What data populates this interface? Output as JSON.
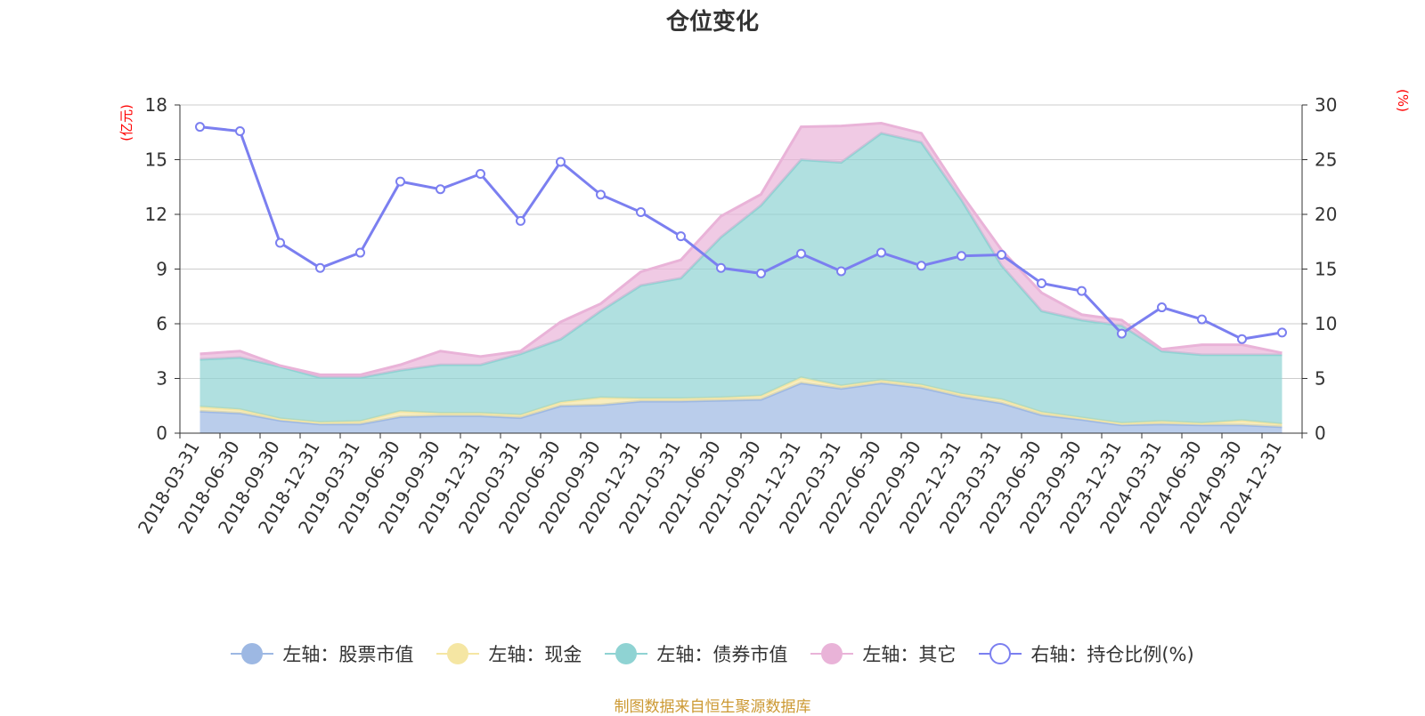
{
  "chart_data": {
    "type": "area",
    "title": "仓位变化",
    "left_axis_unit": "(亿元)",
    "right_axis_unit": "(%)",
    "left_ylim": [
      0,
      18
    ],
    "left_ticks": [
      "0",
      "3",
      "6",
      "9",
      "12",
      "15",
      "18"
    ],
    "right_ylim": [
      0,
      30
    ],
    "right_ticks": [
      "0",
      "5",
      "10",
      "15",
      "20",
      "25",
      "30"
    ],
    "categories": [
      "2018-03-31",
      "2018-06-30",
      "2018-09-30",
      "2018-12-31",
      "2019-03-31",
      "2019-06-30",
      "2019-09-30",
      "2019-12-31",
      "2020-03-31",
      "2020-06-30",
      "2020-09-30",
      "2020-12-31",
      "2021-03-31",
      "2021-06-30",
      "2021-09-30",
      "2021-12-31",
      "2022-03-31",
      "2022-06-30",
      "2022-09-30",
      "2022-12-31",
      "2023-03-31",
      "2023-06-30",
      "2023-09-30",
      "2023-12-31",
      "2024-03-31",
      "2024-06-30",
      "2024-09-30",
      "2024-12-31"
    ],
    "series": [
      {
        "name": "左轴：股票市值",
        "axis": "left",
        "kind": "stacked-area",
        "color": "#9db8e3",
        "values": [
          1.2,
          1.1,
          0.7,
          0.5,
          0.5,
          0.9,
          0.95,
          0.95,
          0.85,
          1.5,
          1.55,
          1.75,
          1.75,
          1.8,
          1.85,
          2.75,
          2.45,
          2.75,
          2.5,
          2.0,
          1.65,
          1.0,
          0.75,
          0.45,
          0.5,
          0.45,
          0.45,
          0.35
        ]
      },
      {
        "name": "左轴：现金",
        "axis": "left",
        "kind": "stacked-area",
        "color": "#f5e6a3",
        "values": [
          0.25,
          0.2,
          0.1,
          0.1,
          0.15,
          0.3,
          0.15,
          0.15,
          0.15,
          0.2,
          0.4,
          0.15,
          0.15,
          0.15,
          0.2,
          0.3,
          0.15,
          0.15,
          0.15,
          0.15,
          0.2,
          0.15,
          0.1,
          0.1,
          0.15,
          0.1,
          0.25,
          0.15
        ]
      },
      {
        "name": "左轴：债券市值",
        "axis": "left",
        "kind": "stacked-area",
        "color": "#8fd3d3",
        "values": [
          2.6,
          2.85,
          2.85,
          2.45,
          2.4,
          2.25,
          2.65,
          2.65,
          3.35,
          3.45,
          4.75,
          6.2,
          6.6,
          8.8,
          10.45,
          11.95,
          12.25,
          13.55,
          13.3,
          10.65,
          7.35,
          5.55,
          5.35,
          5.35,
          3.85,
          3.75,
          3.6,
          3.8
        ]
      },
      {
        "name": "左轴：其它",
        "axis": "left",
        "kind": "stacked-area",
        "color": "#e9b3d8",
        "values": [
          0.3,
          0.35,
          0.05,
          0.15,
          0.15,
          0.3,
          0.75,
          0.45,
          0.15,
          0.95,
          0.4,
          0.75,
          1.0,
          1.15,
          0.6,
          1.8,
          2.0,
          0.55,
          0.5,
          0.3,
          0.85,
          1.0,
          0.3,
          0.3,
          0.1,
          0.55,
          0.55,
          0.1
        ]
      },
      {
        "name": "右轴：持仓比例(%)",
        "axis": "right",
        "kind": "line",
        "color": "#7b7ff0",
        "values": [
          28.0,
          27.6,
          17.4,
          15.1,
          16.5,
          23.0,
          22.3,
          23.7,
          19.4,
          24.8,
          21.8,
          20.2,
          18.0,
          15.1,
          14.6,
          16.4,
          14.8,
          16.5,
          15.3,
          16.2,
          16.3,
          13.7,
          13.0,
          9.1,
          11.5,
          10.4,
          8.6,
          9.2
        ]
      }
    ]
  },
  "source_text": "制图数据来自恒生聚源数据库"
}
